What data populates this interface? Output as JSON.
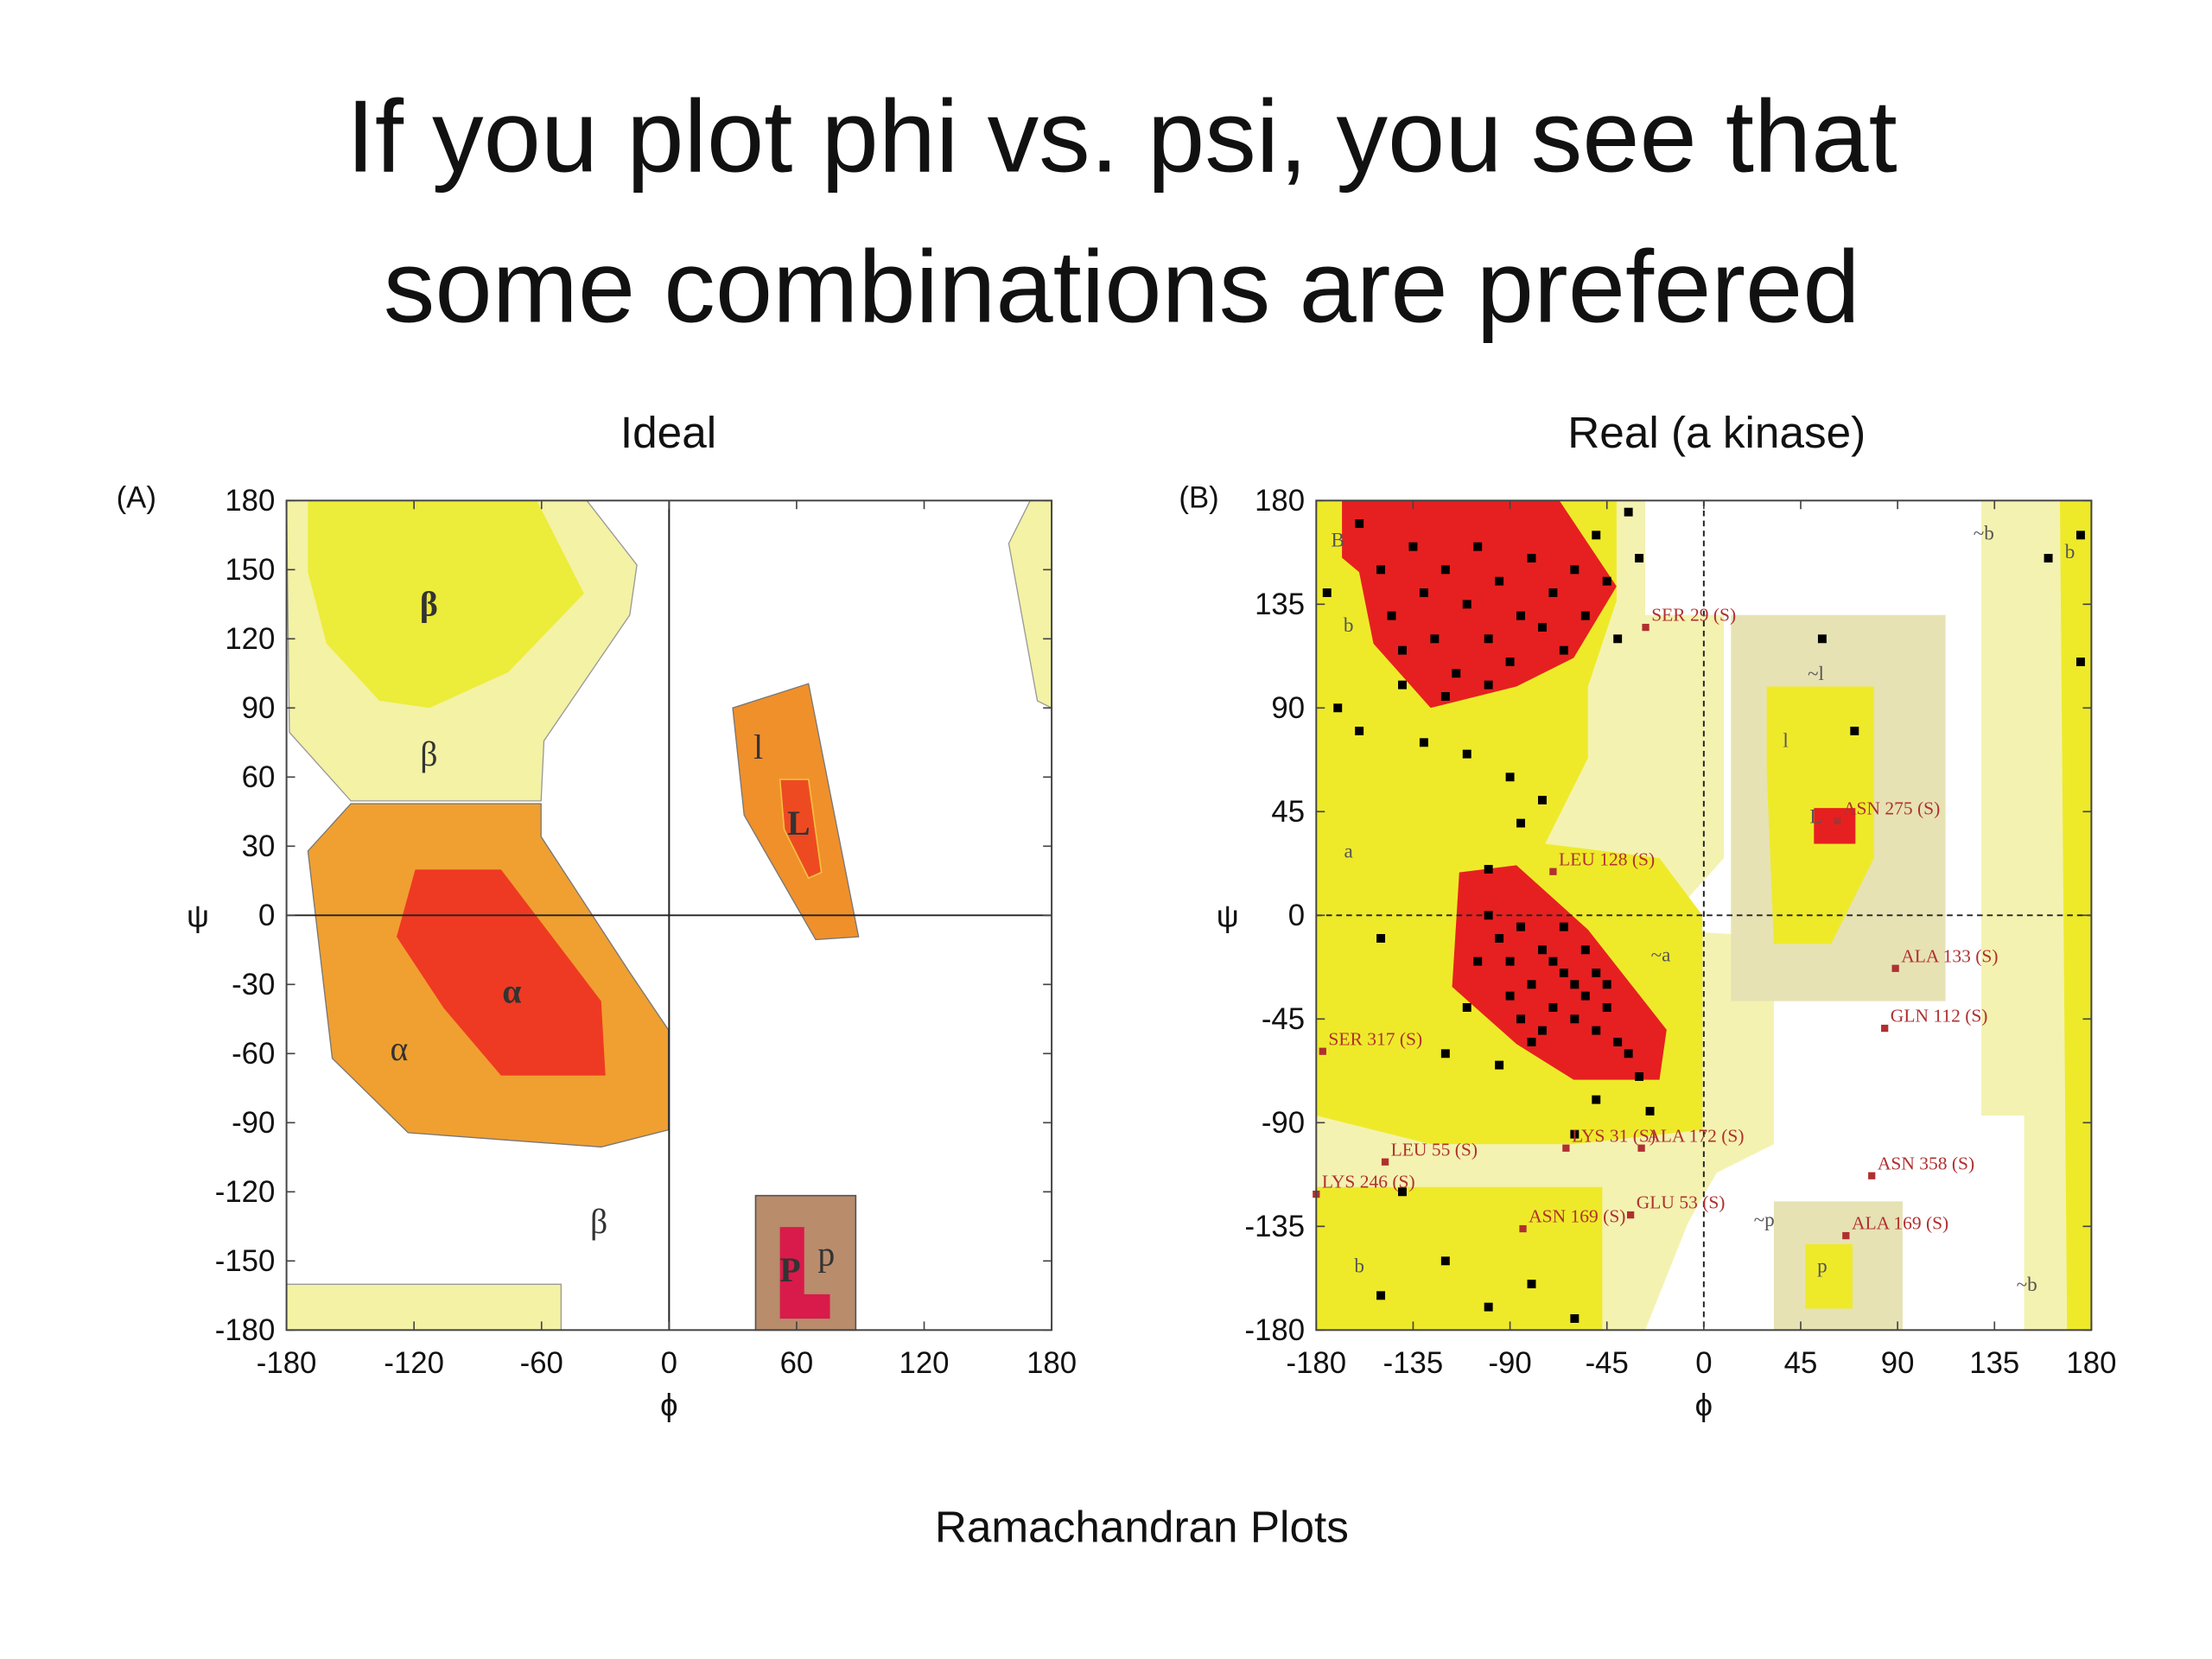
{
  "title_lines": [
    "If you plot phi vs. psi, you see that",
    "some combinations are prefered"
  ],
  "caption": "Ramachandran Plots",
  "chart_data": [
    {
      "type": "regions",
      "title": "Ideal",
      "panel": "(A)",
      "xlabel": "ϕ",
      "ylabel": "ψ",
      "xlim": [
        -180,
        180
      ],
      "ylim": [
        -180,
        180
      ],
      "xticks": [
        -180,
        -120,
        -60,
        0,
        60,
        120,
        180
      ],
      "yticks": [
        -180,
        -150,
        -120,
        -90,
        -60,
        -30,
        0,
        30,
        60,
        90,
        120,
        150,
        180
      ],
      "region_labels": [
        {
          "text": "β",
          "x": -113,
          "y": 135,
          "bold": true
        },
        {
          "text": "β",
          "x": -113,
          "y": 70,
          "bold": false
        },
        {
          "text": "α",
          "x": -74,
          "y": -33,
          "bold": true
        },
        {
          "text": "α",
          "x": -127,
          "y": -58,
          "bold": false
        },
        {
          "text": "l",
          "x": 42,
          "y": 73,
          "bold": false
        },
        {
          "text": "L",
          "x": 61,
          "y": 40,
          "bold": true
        },
        {
          "text": "β",
          "x": -33,
          "y": -133,
          "bold": false
        },
        {
          "text": "p",
          "x": 74,
          "y": -147,
          "bold": false
        },
        {
          "text": "P",
          "x": 57,
          "y": -154,
          "bold": true
        }
      ]
    },
    {
      "type": "scatter",
      "title": "Real (a kinase)",
      "panel": "(B)",
      "xlabel": "ϕ",
      "ylabel": "ψ",
      "xlim": [
        -180,
        180
      ],
      "ylim": [
        -180,
        180
      ],
      "xticks": [
        -180,
        -135,
        -90,
        -45,
        0,
        45,
        90,
        135,
        180
      ],
      "yticks": [
        -180,
        -135,
        -90,
        -45,
        0,
        45,
        90,
        135,
        180
      ],
      "color": "#000000",
      "x": [
        -160,
        -150,
        -145,
        -140,
        -135,
        -130,
        -125,
        -120,
        -115,
        -110,
        -105,
        -100,
        -95,
        -90,
        -85,
        -80,
        -75,
        -70,
        -65,
        -60,
        -55,
        -50,
        -45,
        -40,
        -35,
        -30,
        -100,
        -120,
        -140,
        -175,
        -170,
        -160,
        -130,
        -110,
        -90,
        -85,
        -100,
        -75,
        -100,
        -95,
        -90,
        -85,
        -80,
        -75,
        -70,
        -65,
        -60,
        -55,
        -50,
        -45,
        -40,
        -35,
        -90,
        -85,
        -80,
        -75,
        -70,
        -65,
        -60,
        -55,
        -50,
        -45,
        -105,
        -110,
        -120,
        -95,
        -30,
        -50,
        -60,
        -25,
        -150,
        -150,
        -120,
        -100,
        -80,
        -60,
        -140,
        55,
        70,
        175,
        175,
        160
      ],
      "y": [
        170,
        150,
        130,
        115,
        160,
        140,
        120,
        150,
        105,
        135,
        160,
        120,
        145,
        110,
        130,
        155,
        125,
        140,
        115,
        150,
        130,
        165,
        145,
        120,
        175,
        155,
        100,
        95,
        100,
        140,
        90,
        80,
        75,
        70,
        60,
        40,
        20,
        50,
        0,
        -10,
        -20,
        -5,
        -30,
        -15,
        -40,
        -25,
        -45,
        -35,
        -50,
        -40,
        -55,
        -60,
        -35,
        -45,
        -55,
        -50,
        -20,
        -5,
        -30,
        -15,
        -25,
        -30,
        -20,
        -40,
        -60,
        -65,
        -70,
        -80,
        -95,
        -85,
        -10,
        -165,
        -150,
        -170,
        -160,
        -175,
        -120,
        120,
        80,
        165,
        110,
        155
      ],
      "annotations": [
        {
          "text": "SER 29 (S)",
          "x": -27,
          "y": 129
        },
        {
          "text": "ASN 275 (S)",
          "x": 62,
          "y": 45
        },
        {
          "text": "LEU 128 (S)",
          "x": -70,
          "y": 23
        },
        {
          "text": "ALA 133 (S)",
          "x": 89,
          "y": -19
        },
        {
          "text": "GLN 112 (S)",
          "x": 84,
          "y": -45
        },
        {
          "text": "SER 317 (S)",
          "x": -177,
          "y": -55
        },
        {
          "text": "LEU 55 (S)",
          "x": -148,
          "y": -103
        },
        {
          "text": "LYS 31 (S)",
          "x": -64,
          "y": -97
        },
        {
          "text": "ALA 172 (S)",
          "x": -29,
          "y": -97
        },
        {
          "text": "LYS 246 (S)",
          "x": -180,
          "y": -117
        },
        {
          "text": "GLU 53 (S)",
          "x": -34,
          "y": -126
        },
        {
          "text": "ASN 169 (S)",
          "x": -84,
          "y": -132
        },
        {
          "text": "ASN 358 (S)",
          "x": 78,
          "y": -109
        },
        {
          "text": "ALA 169 (S)",
          "x": 66,
          "y": -135
        }
      ],
      "region_labels": [
        {
          "text": "B",
          "x": -170,
          "y": 165
        },
        {
          "text": "b",
          "x": -165,
          "y": 128
        },
        {
          "text": "a",
          "x": -165,
          "y": 30
        },
        {
          "text": "~a",
          "x": -20,
          "y": -15
        },
        {
          "text": "l",
          "x": 38,
          "y": 78
        },
        {
          "text": "~l",
          "x": 52,
          "y": 107
        },
        {
          "text": "L",
          "x": 52,
          "y": 45
        },
        {
          "text": "~b",
          "x": 130,
          "y": 168
        },
        {
          "text": "b",
          "x": 170,
          "y": 160
        },
        {
          "text": "~p",
          "x": 28,
          "y": -130
        },
        {
          "text": "p",
          "x": 55,
          "y": -150
        },
        {
          "text": "b",
          "x": -160,
          "y": -150
        },
        {
          "text": "~b",
          "x": 150,
          "y": -158
        }
      ]
    }
  ]
}
